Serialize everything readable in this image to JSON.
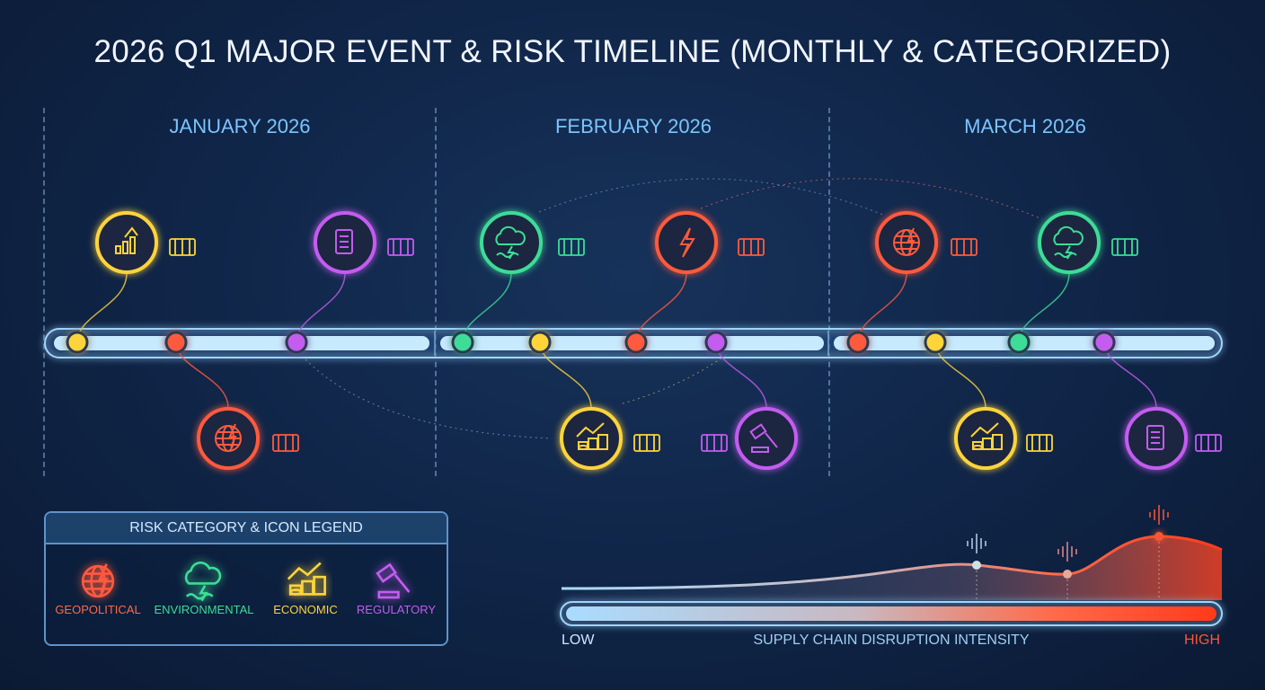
{
  "title": "2026 Q1 MAJOR EVENT & RISK TIMELINE (MONTHLY & CATEGORIZED)",
  "months": [
    "JANUARY 2026",
    "FEBRUARY 2026",
    "MARCH 2026"
  ],
  "categories": {
    "geopolitical": {
      "label": "GEOPOLITICAL",
      "color": "#ff5a3c",
      "icon": "globe-lightning-icon"
    },
    "environmental": {
      "label": "ENVIRONMENTAL",
      "color": "#3ddc97",
      "icon": "storm-cloud-wave-icon"
    },
    "economic": {
      "label": "ECONOMIC",
      "color": "#ffd43b",
      "icon": "coins-trend-icon"
    },
    "regulatory": {
      "label": "REGULATORY",
      "color": "#c45cf0",
      "icon": "gavel-icon"
    }
  },
  "events": [
    {
      "month": "January",
      "category": "economic",
      "icon": "chart-up-icon",
      "detail_icon": "shipping-container-icon"
    },
    {
      "month": "January",
      "category": "geopolitical",
      "icon": "globe-lightning-icon",
      "detail_icon": "road-barrier-icon"
    },
    {
      "month": "January",
      "category": "regulatory",
      "icon": "document-scroll-icon",
      "detail_icon": "port-crane-icon"
    },
    {
      "month": "February",
      "category": "environmental",
      "icon": "storm-wave-icon",
      "detail_icon": "sinking-ship-icon"
    },
    {
      "month": "February",
      "category": "economic",
      "icon": "coins-trend-up-icon",
      "detail_icon": "euro-dollar-icon"
    },
    {
      "month": "February",
      "category": "geopolitical",
      "icon": "lightning-icon",
      "detail_icon": "tank-icon"
    },
    {
      "month": "February",
      "category": "regulatory",
      "icon": "gavel-icon",
      "detail_icon": "lock-icon"
    },
    {
      "month": "March",
      "category": "geopolitical",
      "icon": "globe-lightning-icon",
      "detail_icon": "blocked-container-icon"
    },
    {
      "month": "March",
      "category": "economic",
      "icon": "coins-trend-down-icon",
      "detail_icon": "chart-down-icon"
    },
    {
      "month": "March",
      "category": "environmental",
      "icon": "storm-cloud-icon",
      "detail_icon": "cargo-ship-icon"
    },
    {
      "month": "March",
      "category": "regulatory",
      "icon": "document-scroll-icon",
      "detail_icon": "fuel-pump-icon"
    }
  ],
  "legend": {
    "title": "RISK CATEGORY & ICON LEGEND",
    "items": [
      "GEOPOLITICAL",
      "ENVIRONMENTAL",
      "ECONOMIC",
      "REGULATORY"
    ]
  },
  "intensity": {
    "label": "SUPPLY CHAIN DISRUPTION INTENSITY",
    "low": "LOW",
    "high": "HIGH",
    "low_color": "#a9dcff",
    "high_color": "#ff4422",
    "peaks": [
      "February",
      "March",
      "March"
    ]
  }
}
